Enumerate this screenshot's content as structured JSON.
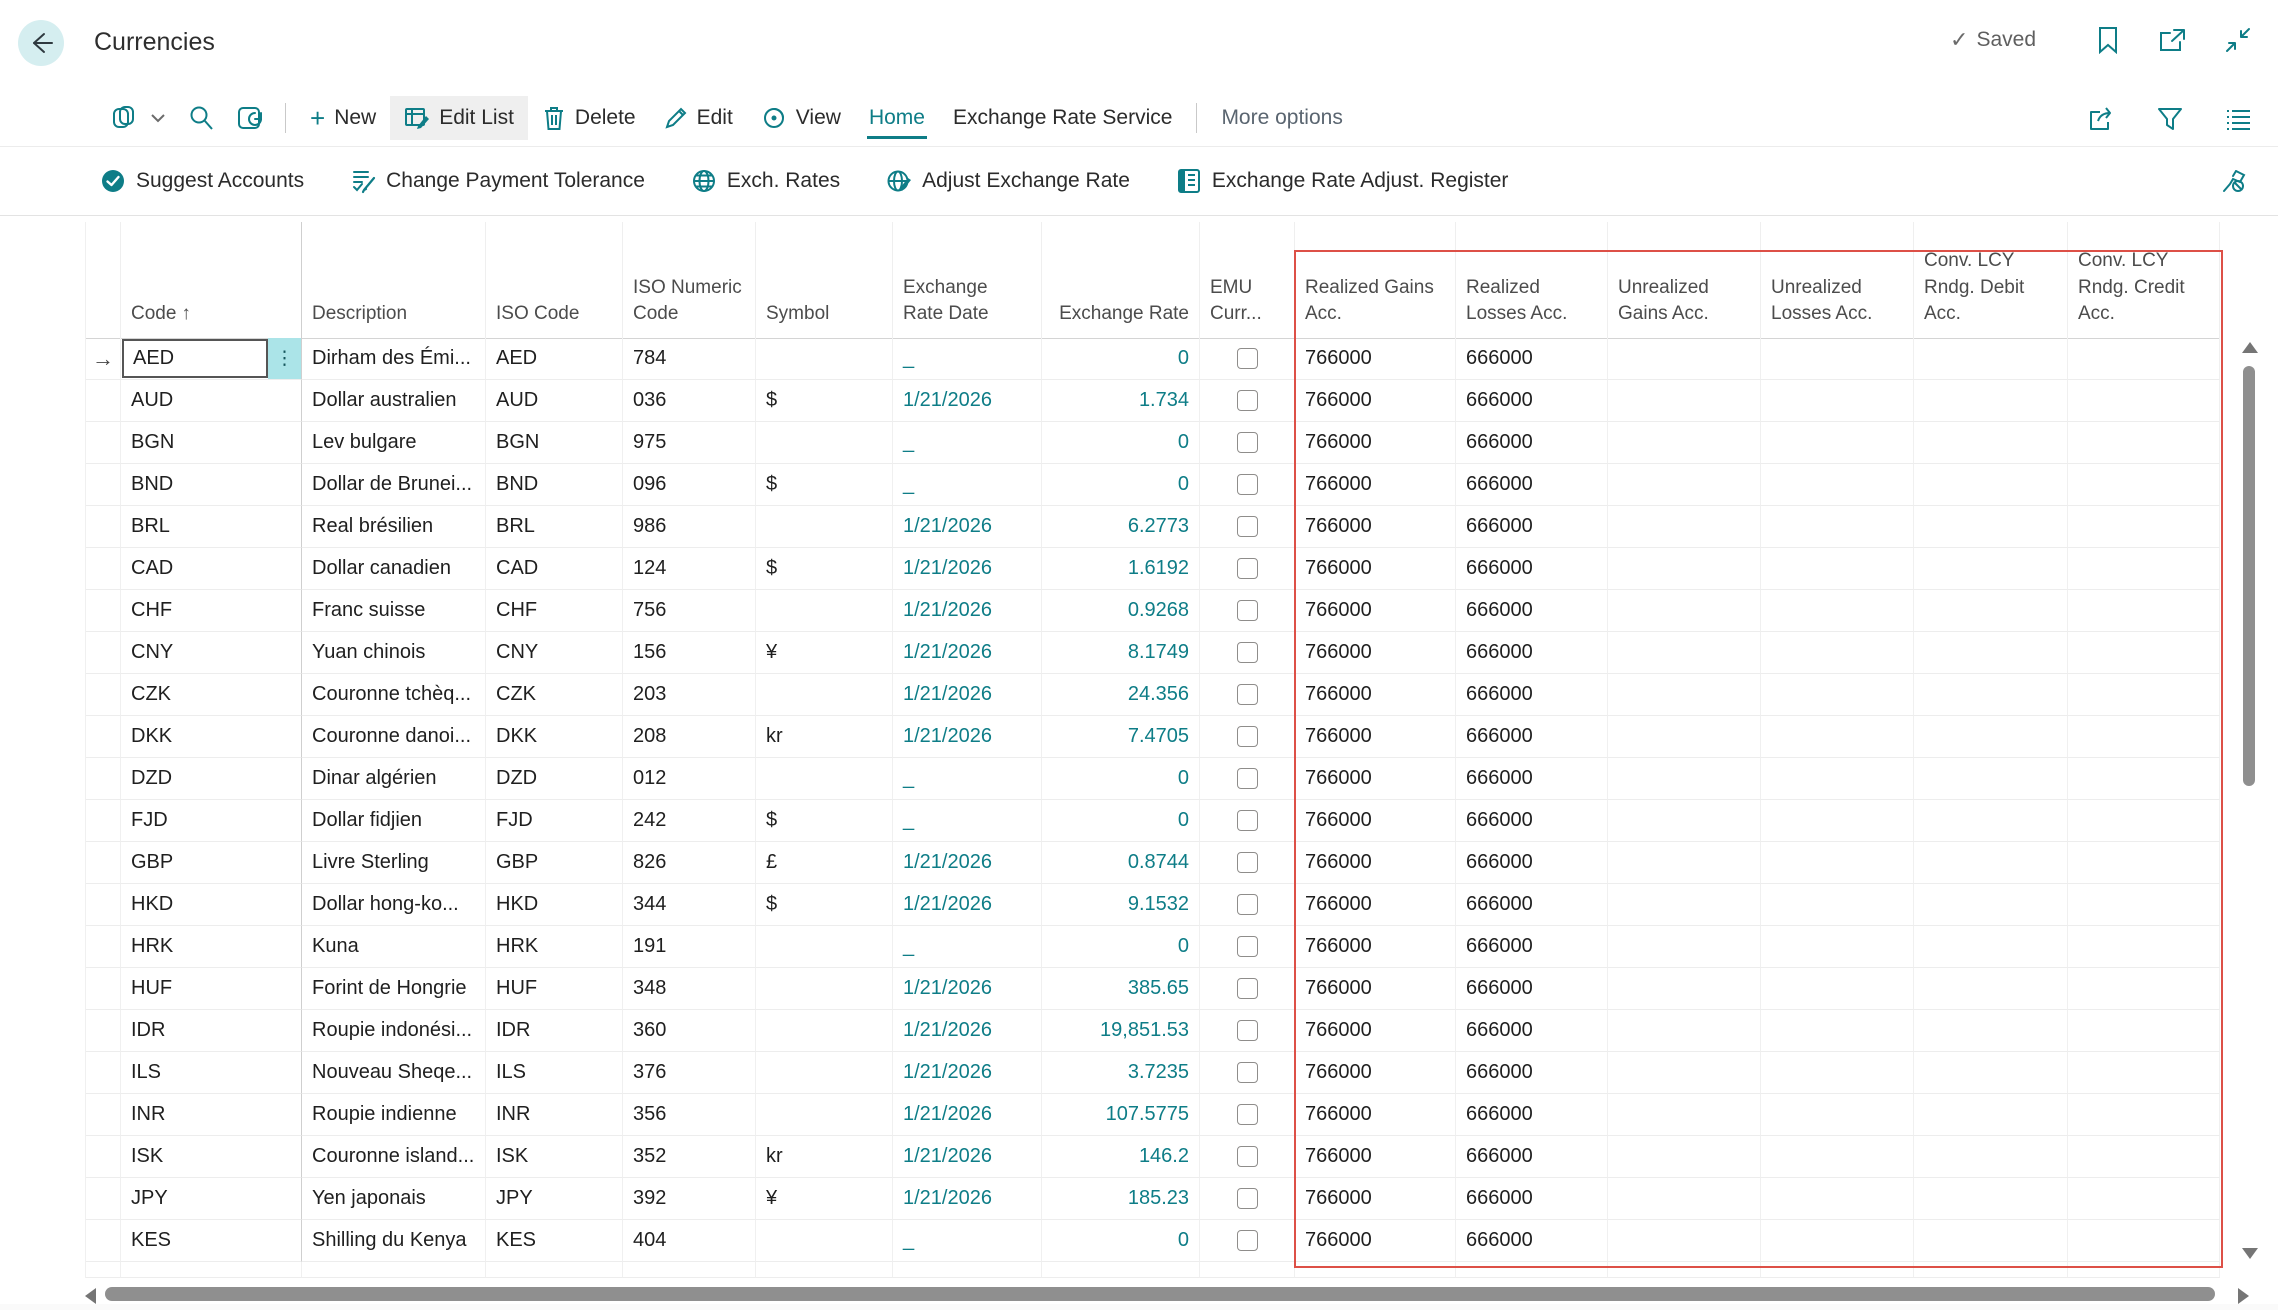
{
  "page": {
    "title": "Currencies",
    "status_label": "Saved"
  },
  "icons": {
    "check": "✓",
    "plus": "+",
    "ellipsis": "⋮",
    "sort_ascending": "↑",
    "active_row_arrow": "→",
    "empty_value": "_"
  },
  "colors": {
    "accent": "#0e7d87",
    "accent_light": "#d5eef0",
    "ellipsis_cell": "#abe4e8",
    "red_frame": "#dd5047",
    "link": "#0e7d87"
  },
  "toolbar": {
    "new_label": "New",
    "edit_list_label": "Edit List",
    "delete_label": "Delete",
    "edit_label": "Edit",
    "view_label": "View",
    "home_tab": "Home",
    "exchange_rate_service_tab": "Exchange Rate Service",
    "more_options_label": "More options"
  },
  "actions": {
    "suggest_accounts": "Suggest Accounts",
    "change_payment_tolerance": "Change Payment Tolerance",
    "exch_rates": "Exch. Rates",
    "adjust_exchange_rate": "Adjust Exchange Rate",
    "exchange_rate_adjust_register": "Exchange Rate Adjust. Register"
  },
  "table": {
    "headers": {
      "code": "Code",
      "description": "Description",
      "iso_code": "ISO Code",
      "iso_numeric": "ISO Numeric Code",
      "symbol": "Symbol",
      "exchange_rate_date": "Exchange Rate Date",
      "exchange_rate": "Exchange Rate",
      "emu": "EMU Curr...",
      "realized_gains": "Realized Gains Acc.",
      "realized_losses": "Realized Losses Acc.",
      "unrealized_gains": "Unrealized Gains Acc.",
      "unrealized_losses": "Unrealized Losses Acc.",
      "conv_lcy_debit": "Conv. LCY Rndg. Debit Acc.",
      "conv_lcy_credit": "Conv. LCY Rndg. Credit Acc."
    },
    "rows": [
      {
        "code": "AED",
        "description": "Dirham des Émi...",
        "iso_code": "AED",
        "iso_numeric": "784",
        "symbol": "",
        "rate_date": "",
        "rate": "0",
        "emu": false,
        "realized_gains": "766000",
        "realized_losses": "666000",
        "unrealized_gains": "",
        "unrealized_losses": "",
        "conv_lcy_debit": "",
        "conv_lcy_credit": "",
        "active": true
      },
      {
        "code": "AUD",
        "description": "Dollar australien",
        "iso_code": "AUD",
        "iso_numeric": "036",
        "symbol": "$",
        "rate_date": "1/21/2026",
        "rate": "1.734",
        "emu": false,
        "realized_gains": "766000",
        "realized_losses": "666000",
        "unrealized_gains": "",
        "unrealized_losses": "",
        "conv_lcy_debit": "",
        "conv_lcy_credit": "",
        "active": false
      },
      {
        "code": "BGN",
        "description": "Lev bulgare",
        "iso_code": "BGN",
        "iso_numeric": "975",
        "symbol": "",
        "rate_date": "",
        "rate": "0",
        "emu": false,
        "realized_gains": "766000",
        "realized_losses": "666000",
        "unrealized_gains": "",
        "unrealized_losses": "",
        "conv_lcy_debit": "",
        "conv_lcy_credit": "",
        "active": false
      },
      {
        "code": "BND",
        "description": "Dollar de Brunei...",
        "iso_code": "BND",
        "iso_numeric": "096",
        "symbol": "$",
        "rate_date": "",
        "rate": "0",
        "emu": false,
        "realized_gains": "766000",
        "realized_losses": "666000",
        "unrealized_gains": "",
        "unrealized_losses": "",
        "conv_lcy_debit": "",
        "conv_lcy_credit": "",
        "active": false
      },
      {
        "code": "BRL",
        "description": "Real brésilien",
        "iso_code": "BRL",
        "iso_numeric": "986",
        "symbol": "",
        "rate_date": "1/21/2026",
        "rate": "6.2773",
        "emu": false,
        "realized_gains": "766000",
        "realized_losses": "666000",
        "unrealized_gains": "",
        "unrealized_losses": "",
        "conv_lcy_debit": "",
        "conv_lcy_credit": "",
        "active": false
      },
      {
        "code": "CAD",
        "description": "Dollar canadien",
        "iso_code": "CAD",
        "iso_numeric": "124",
        "symbol": "$",
        "rate_date": "1/21/2026",
        "rate": "1.6192",
        "emu": false,
        "realized_gains": "766000",
        "realized_losses": "666000",
        "unrealized_gains": "",
        "unrealized_losses": "",
        "conv_lcy_debit": "",
        "conv_lcy_credit": "",
        "active": false
      },
      {
        "code": "CHF",
        "description": "Franc suisse",
        "iso_code": "CHF",
        "iso_numeric": "756",
        "symbol": "",
        "rate_date": "1/21/2026",
        "rate": "0.9268",
        "emu": false,
        "realized_gains": "766000",
        "realized_losses": "666000",
        "unrealized_gains": "",
        "unrealized_losses": "",
        "conv_lcy_debit": "",
        "conv_lcy_credit": "",
        "active": false
      },
      {
        "code": "CNY",
        "description": "Yuan chinois",
        "iso_code": "CNY",
        "iso_numeric": "156",
        "symbol": "¥",
        "rate_date": "1/21/2026",
        "rate": "8.1749",
        "emu": false,
        "realized_gains": "766000",
        "realized_losses": "666000",
        "unrealized_gains": "",
        "unrealized_losses": "",
        "conv_lcy_debit": "",
        "conv_lcy_credit": "",
        "active": false
      },
      {
        "code": "CZK",
        "description": "Couronne tchèq...",
        "iso_code": "CZK",
        "iso_numeric": "203",
        "symbol": "",
        "rate_date": "1/21/2026",
        "rate": "24.356",
        "emu": false,
        "realized_gains": "766000",
        "realized_losses": "666000",
        "unrealized_gains": "",
        "unrealized_losses": "",
        "conv_lcy_debit": "",
        "conv_lcy_credit": "",
        "active": false
      },
      {
        "code": "DKK",
        "description": "Couronne danoi...",
        "iso_code": "DKK",
        "iso_numeric": "208",
        "symbol": "kr",
        "rate_date": "1/21/2026",
        "rate": "7.4705",
        "emu": false,
        "realized_gains": "766000",
        "realized_losses": "666000",
        "unrealized_gains": "",
        "unrealized_losses": "",
        "conv_lcy_debit": "",
        "conv_lcy_credit": "",
        "active": false
      },
      {
        "code": "DZD",
        "description": "Dinar algérien",
        "iso_code": "DZD",
        "iso_numeric": "012",
        "symbol": "",
        "rate_date": "",
        "rate": "0",
        "emu": false,
        "realized_gains": "766000",
        "realized_losses": "666000",
        "unrealized_gains": "",
        "unrealized_losses": "",
        "conv_lcy_debit": "",
        "conv_lcy_credit": "",
        "active": false
      },
      {
        "code": "FJD",
        "description": "Dollar fidjien",
        "iso_code": "FJD",
        "iso_numeric": "242",
        "symbol": "$",
        "rate_date": "",
        "rate": "0",
        "emu": false,
        "realized_gains": "766000",
        "realized_losses": "666000",
        "unrealized_gains": "",
        "unrealized_losses": "",
        "conv_lcy_debit": "",
        "conv_lcy_credit": "",
        "active": false
      },
      {
        "code": "GBP",
        "description": "Livre Sterling",
        "iso_code": "GBP",
        "iso_numeric": "826",
        "symbol": "£",
        "rate_date": "1/21/2026",
        "rate": "0.8744",
        "emu": false,
        "realized_gains": "766000",
        "realized_losses": "666000",
        "unrealized_gains": "",
        "unrealized_losses": "",
        "conv_lcy_debit": "",
        "conv_lcy_credit": "",
        "active": false
      },
      {
        "code": "HKD",
        "description": "Dollar hong-ko...",
        "iso_code": "HKD",
        "iso_numeric": "344",
        "symbol": "$",
        "rate_date": "1/21/2026",
        "rate": "9.1532",
        "emu": false,
        "realized_gains": "766000",
        "realized_losses": "666000",
        "unrealized_gains": "",
        "unrealized_losses": "",
        "conv_lcy_debit": "",
        "conv_lcy_credit": "",
        "active": false
      },
      {
        "code": "HRK",
        "description": "Kuna",
        "iso_code": "HRK",
        "iso_numeric": "191",
        "symbol": "",
        "rate_date": "",
        "rate": "0",
        "emu": false,
        "realized_gains": "766000",
        "realized_losses": "666000",
        "unrealized_gains": "",
        "unrealized_losses": "",
        "conv_lcy_debit": "",
        "conv_lcy_credit": "",
        "active": false
      },
      {
        "code": "HUF",
        "description": "Forint de Hongrie",
        "iso_code": "HUF",
        "iso_numeric": "348",
        "symbol": "",
        "rate_date": "1/21/2026",
        "rate": "385.65",
        "emu": false,
        "realized_gains": "766000",
        "realized_losses": "666000",
        "unrealized_gains": "",
        "unrealized_losses": "",
        "conv_lcy_debit": "",
        "conv_lcy_credit": "",
        "active": false
      },
      {
        "code": "IDR",
        "description": "Roupie indonési...",
        "iso_code": "IDR",
        "iso_numeric": "360",
        "symbol": "",
        "rate_date": "1/21/2026",
        "rate": "19,851.53",
        "emu": false,
        "realized_gains": "766000",
        "realized_losses": "666000",
        "unrealized_gains": "",
        "unrealized_losses": "",
        "conv_lcy_debit": "",
        "conv_lcy_credit": "",
        "active": false
      },
      {
        "code": "ILS",
        "description": "Nouveau Sheqe...",
        "iso_code": "ILS",
        "iso_numeric": "376",
        "symbol": "",
        "rate_date": "1/21/2026",
        "rate": "3.7235",
        "emu": false,
        "realized_gains": "766000",
        "realized_losses": "666000",
        "unrealized_gains": "",
        "unrealized_losses": "",
        "conv_lcy_debit": "",
        "conv_lcy_credit": "",
        "active": false
      },
      {
        "code": "INR",
        "description": "Roupie indienne",
        "iso_code": "INR",
        "iso_numeric": "356",
        "symbol": "",
        "rate_date": "1/21/2026",
        "rate": "107.5775",
        "emu": false,
        "realized_gains": "766000",
        "realized_losses": "666000",
        "unrealized_gains": "",
        "unrealized_losses": "",
        "conv_lcy_debit": "",
        "conv_lcy_credit": "",
        "active": false
      },
      {
        "code": "ISK",
        "description": "Couronne island...",
        "iso_code": "ISK",
        "iso_numeric": "352",
        "symbol": "kr",
        "rate_date": "1/21/2026",
        "rate": "146.2",
        "emu": false,
        "realized_gains": "766000",
        "realized_losses": "666000",
        "unrealized_gains": "",
        "unrealized_losses": "",
        "conv_lcy_debit": "",
        "conv_lcy_credit": "",
        "active": false
      },
      {
        "code": "JPY",
        "description": "Yen japonais",
        "iso_code": "JPY",
        "iso_numeric": "392",
        "symbol": "¥",
        "rate_date": "1/21/2026",
        "rate": "185.23",
        "emu": false,
        "realized_gains": "766000",
        "realized_losses": "666000",
        "unrealized_gains": "",
        "unrealized_losses": "",
        "conv_lcy_debit": "",
        "conv_lcy_credit": "",
        "active": false
      },
      {
        "code": "KES",
        "description": "Shilling du Kenya",
        "iso_code": "KES",
        "iso_numeric": "404",
        "symbol": "",
        "rate_date": "",
        "rate": "0",
        "emu": false,
        "realized_gains": "766000",
        "realized_losses": "666000",
        "unrealized_gains": "",
        "unrealized_losses": "",
        "conv_lcy_debit": "",
        "conv_lcy_credit": "",
        "active": false
      }
    ]
  }
}
